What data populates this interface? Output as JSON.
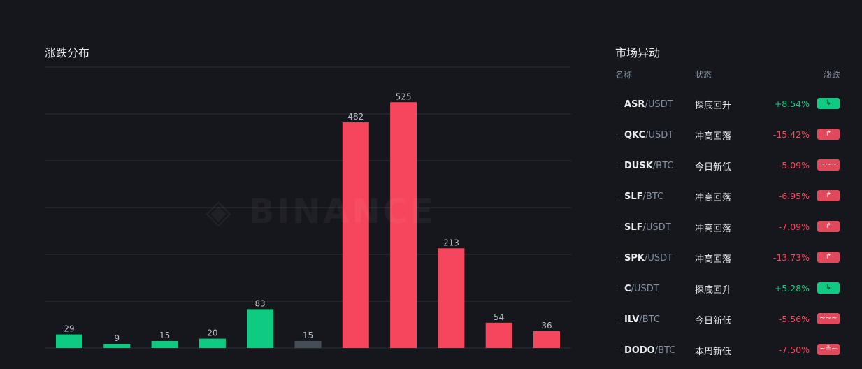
{
  "distribution": {
    "title": "涨跌分布"
  },
  "chart_data": {
    "type": "bar",
    "title": "涨跌分布",
    "values": [
      29,
      9,
      15,
      20,
      83,
      15,
      482,
      525,
      213,
      54,
      36
    ],
    "colors": [
      "#0ecb81",
      "#0ecb81",
      "#0ecb81",
      "#0ecb81",
      "#0ecb81",
      "#474d57",
      "#f6465d",
      "#f6465d",
      "#f6465d",
      "#f6465d",
      "#f6465d"
    ],
    "ylim": [
      0,
      600
    ],
    "grid": true
  },
  "market": {
    "title": "市场异动",
    "headers": {
      "name": "名称",
      "state": "状态",
      "change": "涨跌"
    },
    "rows": [
      {
        "base": "ASR",
        "quote": "/USDT",
        "state": "探底回升",
        "change": "+8.54%",
        "direction": "up",
        "icon": "rebound-up-icon",
        "glyph": "↳"
      },
      {
        "base": "QKC",
        "quote": "/USDT",
        "state": "冲高回落",
        "change": "-15.42%",
        "direction": "down",
        "icon": "pullback-down-icon",
        "glyph": "↱"
      },
      {
        "base": "DUSK",
        "quote": "/BTC",
        "state": "今日新低",
        "change": "-5.09%",
        "direction": "down",
        "icon": "new-low-icon",
        "glyph": "~~~"
      },
      {
        "base": "SLF",
        "quote": "/BTC",
        "state": "冲高回落",
        "change": "-6.95%",
        "direction": "down",
        "icon": "pullback-down-icon",
        "glyph": "↱"
      },
      {
        "base": "SLF",
        "quote": "/USDT",
        "state": "冲高回落",
        "change": "-7.09%",
        "direction": "down",
        "icon": "pullback-down-icon",
        "glyph": "↱"
      },
      {
        "base": "SPK",
        "quote": "/USDT",
        "state": "冲高回落",
        "change": "-13.73%",
        "direction": "down",
        "icon": "pullback-down-icon",
        "glyph": "↱"
      },
      {
        "base": "C",
        "quote": "/USDT",
        "state": "探底回升",
        "change": "+5.28%",
        "direction": "up",
        "icon": "rebound-up-icon",
        "glyph": "↳"
      },
      {
        "base": "ILV",
        "quote": "/BTC",
        "state": "今日新低",
        "change": "-5.56%",
        "direction": "down",
        "icon": "new-low-icon",
        "glyph": "~~~"
      },
      {
        "base": "DODO",
        "quote": "/BTC",
        "state": "本周新低",
        "change": "-7.50%",
        "direction": "down",
        "icon": "weekly-low-icon",
        "glyph": "~≚~"
      }
    ]
  }
}
